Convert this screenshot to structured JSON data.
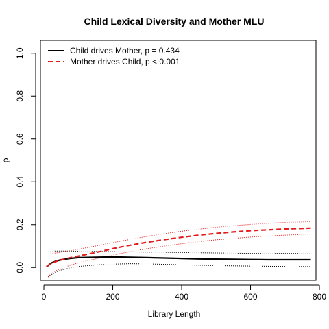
{
  "chart_data": {
    "type": "line",
    "title": "Child Lexical Diversity and Mother MLU",
    "xlabel": "Library Length",
    "ylabel": "ρ",
    "xlim": [
      -10,
      790
    ],
    "ylim": [
      -0.06,
      1.06
    ],
    "xticks": [
      0,
      200,
      400,
      600,
      800
    ],
    "yticks": [
      0.0,
      0.2,
      0.4,
      0.6,
      0.8,
      1.0
    ],
    "xtick_labels": [
      "0",
      "200",
      "400",
      "600",
      "800"
    ],
    "ytick_labels": [
      "0.0",
      "0.2",
      "0.4",
      "0.6",
      "0.8",
      "1.0"
    ],
    "grid": false,
    "legend": {
      "position": "top-left"
    },
    "x": [
      8,
      20,
      35,
      50,
      75,
      100,
      150,
      200,
      250,
      300,
      350,
      400,
      450,
      500,
      550,
      600,
      650,
      700,
      775
    ],
    "series": [
      {
        "name": "Child drives Mother, p = 0.434",
        "color": "#000000",
        "style": "solid",
        "values": [
          0.003,
          0.02,
          0.03,
          0.036,
          0.042,
          0.046,
          0.048,
          0.049,
          0.048,
          0.046,
          0.044,
          0.042,
          0.04,
          0.039,
          0.038,
          0.037,
          0.036,
          0.036,
          0.036
        ],
        "upper": [
          0.072,
          0.076,
          0.077,
          0.077,
          0.077,
          0.076,
          0.075,
          0.074,
          0.073,
          0.072,
          0.071,
          0.07,
          0.069,
          0.068,
          0.067,
          0.066,
          0.066,
          0.066,
          0.066
        ],
        "lower": [
          -0.05,
          -0.035,
          -0.022,
          -0.012,
          -0.002,
          0.005,
          0.012,
          0.016,
          0.018,
          0.017,
          0.015,
          0.013,
          0.011,
          0.009,
          0.008,
          0.007,
          0.006,
          0.005,
          0.004
        ]
      },
      {
        "name": "Mother drives Child, p < 0.001",
        "color": "#e31a1c",
        "style": "dashed",
        "values": [
          0.005,
          0.018,
          0.028,
          0.035,
          0.045,
          0.053,
          0.07,
          0.088,
          0.104,
          0.118,
          0.13,
          0.141,
          0.151,
          0.159,
          0.166,
          0.172,
          0.176,
          0.18,
          0.184
        ],
        "upper": [
          0.06,
          0.065,
          0.068,
          0.072,
          0.078,
          0.085,
          0.1,
          0.116,
          0.131,
          0.145,
          0.158,
          0.169,
          0.179,
          0.188,
          0.195,
          0.201,
          0.206,
          0.21,
          0.214
        ],
        "lower": [
          -0.05,
          -0.03,
          -0.015,
          -0.005,
          0.01,
          0.022,
          0.04,
          0.058,
          0.074,
          0.088,
          0.1,
          0.111,
          0.121,
          0.129,
          0.136,
          0.142,
          0.147,
          0.151,
          0.155
        ]
      }
    ]
  }
}
